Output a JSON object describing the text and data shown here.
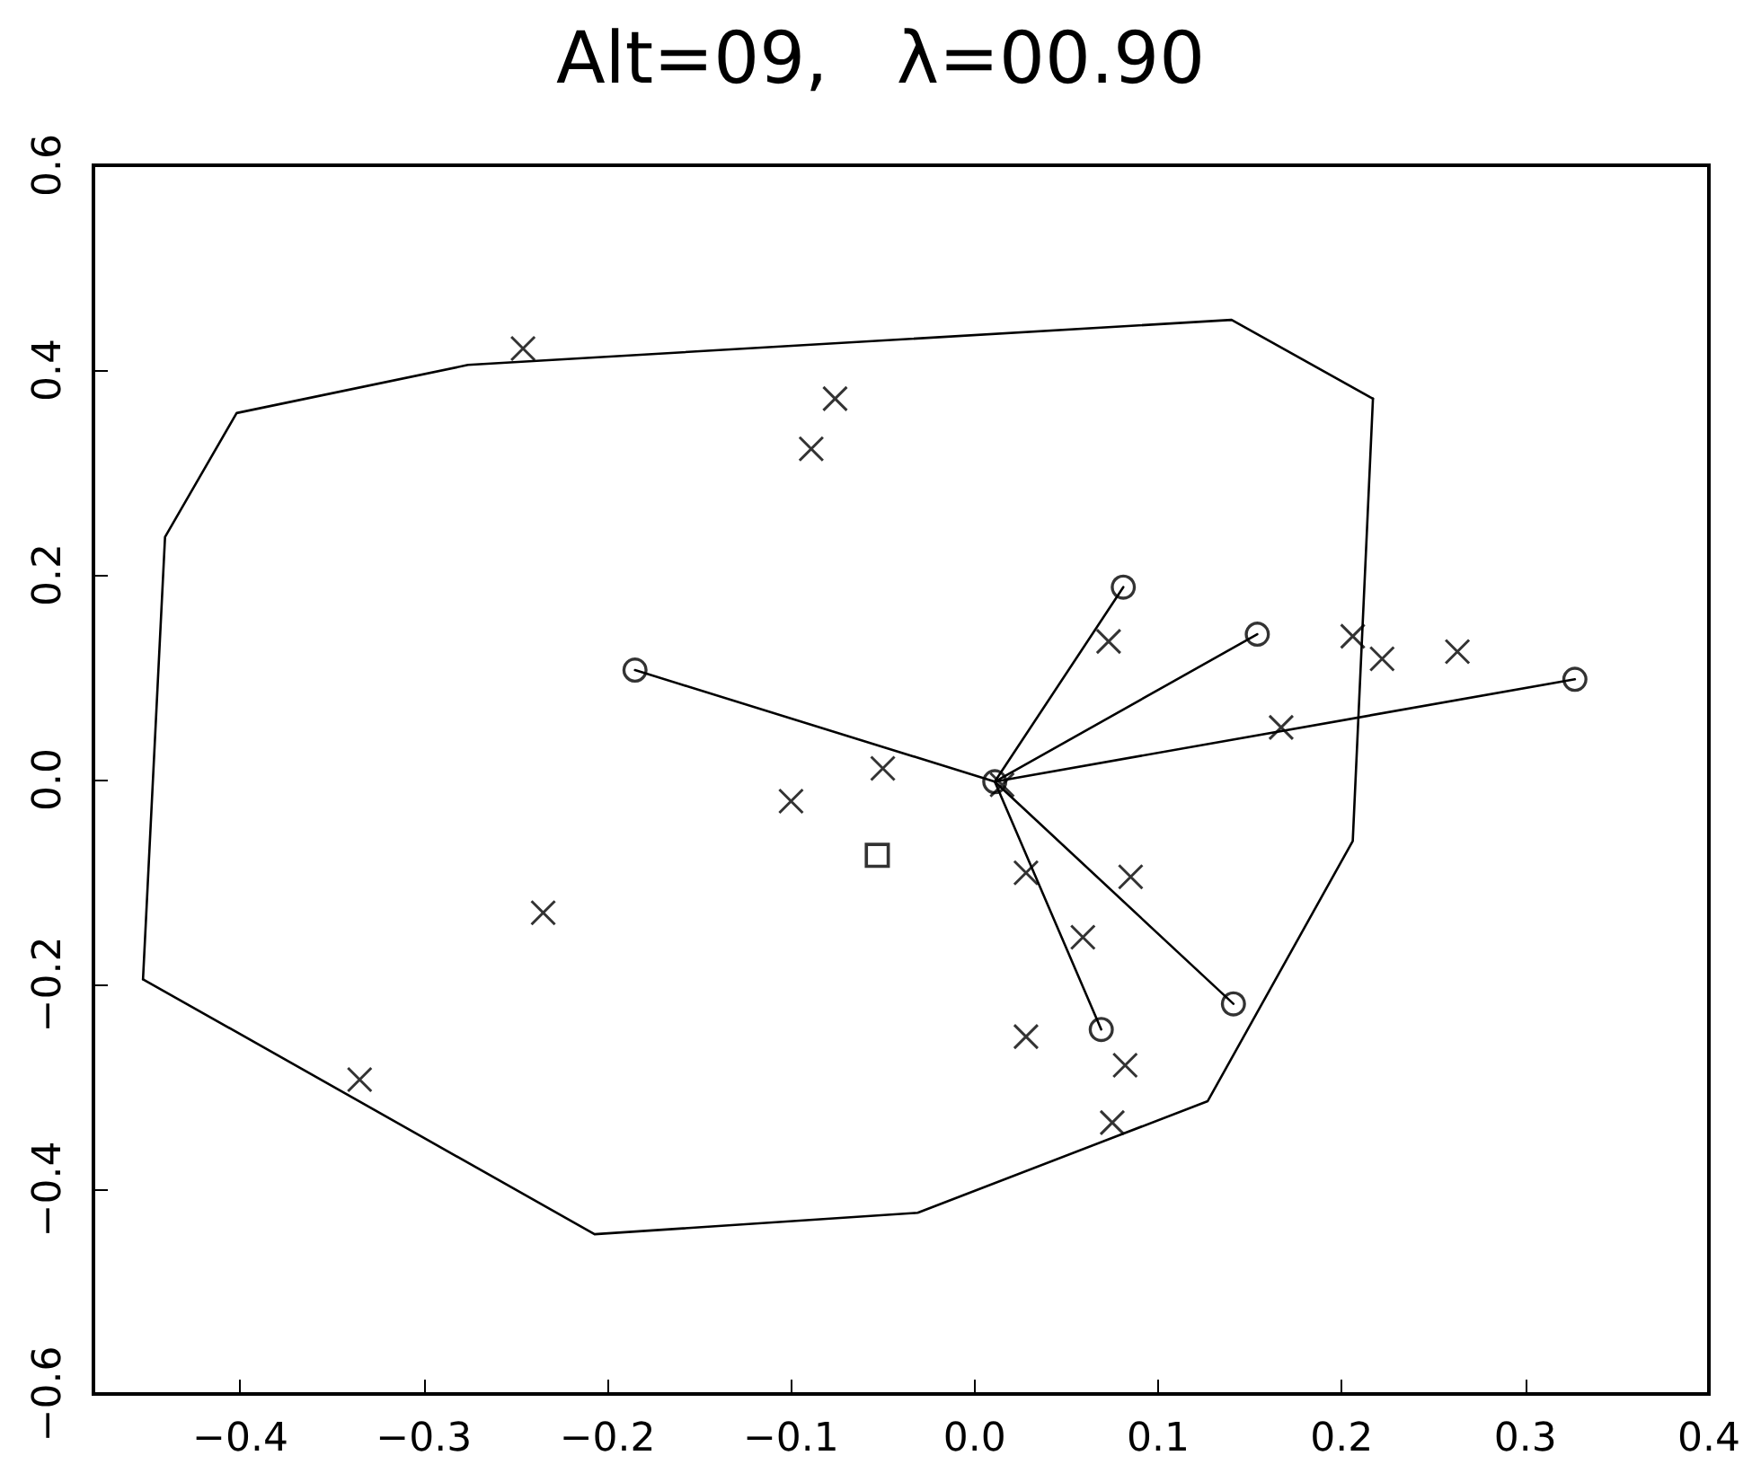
{
  "chart_data": {
    "type": "scatter",
    "title": "Alt=09,   λ=00.90",
    "xlim": [
      -0.48,
      0.4
    ],
    "xticks": [
      {
        "value": -0.4,
        "label": "−0.4"
      },
      {
        "value": -0.3,
        "label": "−0.3"
      },
      {
        "value": -0.2,
        "label": "−0.2"
      },
      {
        "value": -0.1,
        "label": "−0.1"
      },
      {
        "value": 0,
        "label": "0.0"
      },
      {
        "value": 0.1,
        "label": "0.1"
      },
      {
        "value": 0.2,
        "label": "0.2"
      },
      {
        "value": 0.3,
        "label": "0.3"
      },
      {
        "value": 0.4,
        "label": "0.4"
      }
    ],
    "ylim": [
      -0.6,
      0.6
    ],
    "yticks": [
      {
        "value": -0.6,
        "label": "−0.6"
      },
      {
        "value": -0.4,
        "label": "−0.4"
      },
      {
        "value": -0.2,
        "label": "−0.2"
      },
      {
        "value": 0,
        "label": "0.0"
      },
      {
        "value": 0.2,
        "label": "0.2"
      },
      {
        "value": 0.4,
        "label": "0.4"
      },
      {
        "value": 0.6,
        "label": "0.6"
      }
    ],
    "grid": false,
    "series": [
      {
        "type": "line",
        "marker": "none",
        "line_style": "solid",
        "color": "#000000",
        "x": [
          -0.453,
          -0.441,
          -0.402,
          -0.276,
          0.14,
          0.217
        ],
        "values": [
          -0.195,
          0.237,
          0.358,
          0.405,
          0.449,
          0.372
        ]
      },
      {
        "type": "line",
        "marker": "none",
        "line_style": "solid",
        "color": "#000000",
        "x": [
          -0.453,
          -0.207,
          -0.031,
          0.127,
          0.206,
          0.217
        ],
        "values": [
          -0.195,
          -0.444,
          -0.423,
          -0.314,
          -0.06,
          0.372
        ]
      },
      {
        "type": "line",
        "marker": "none",
        "line_style": "solid",
        "color": "#000000",
        "x": [
          0.011,
          0.081
        ],
        "values": [
          -0.002,
          0.188
        ]
      },
      {
        "type": "line",
        "marker": "none",
        "line_style": "solid",
        "color": "#000000",
        "x": [
          0.011,
          0.154
        ],
        "values": [
          -0.002,
          0.142
        ]
      },
      {
        "type": "line",
        "marker": "none",
        "line_style": "solid",
        "color": "#000000",
        "x": [
          0.011,
          0.327
        ],
        "values": [
          -0.002,
          0.098
        ]
      },
      {
        "type": "line",
        "marker": "none",
        "line_style": "solid",
        "color": "#000000",
        "x": [
          0.011,
          0.141
        ],
        "values": [
          -0.002,
          -0.219
        ]
      },
      {
        "type": "line",
        "marker": "none",
        "line_style": "solid",
        "color": "#000000",
        "x": [
          0.011,
          0.069
        ],
        "values": [
          -0.002,
          -0.244
        ]
      },
      {
        "type": "line",
        "marker": "none",
        "line_style": "solid",
        "color": "#000000",
        "x": [
          0.011,
          -0.185
        ],
        "values": [
          -0.002,
          0.107
        ]
      },
      {
        "marker": "cross",
        "color": "#000000",
        "x": [
          -0.246,
          -0.076,
          -0.089,
          -0.1,
          -0.05,
          -0.235,
          -0.335,
          0.073,
          0.206,
          0.222,
          0.263,
          0.167,
          0.015,
          0.028,
          0.085,
          0.059,
          0.028,
          0.082,
          0.075
        ],
        "values": [
          0.421,
          0.372,
          0.323,
          -0.021,
          0.011,
          -0.13,
          -0.293,
          0.135,
          0.14,
          0.118,
          0.125,
          0.051,
          -0.005,
          -0.091,
          -0.095,
          -0.154,
          -0.251,
          -0.279,
          -0.335
        ]
      },
      {
        "type": "scatter",
        "marker": "circle",
        "color": "#000000",
        "x": [
          0.081,
          0.154,
          0.327,
          0.141,
          0.069,
          -0.185,
          0.011
        ],
        "values": [
          0.188,
          0.142,
          0.098,
          -0.219,
          -0.244,
          0.107,
          -0.002
        ]
      },
      {
        "type": "scatter",
        "marker": "square",
        "color": "#000000",
        "x": [
          -0.053
        ],
        "values": [
          -0.074
        ]
      }
    ]
  }
}
